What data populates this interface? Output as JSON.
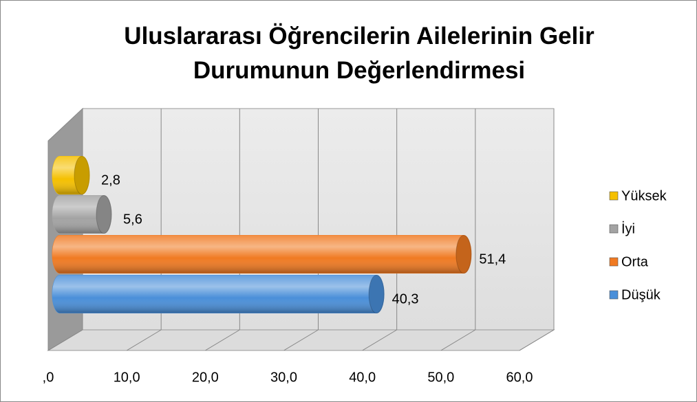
{
  "chart_data": {
    "type": "bar3d",
    "title": "Uluslararası Öğrencilerin Ailelerinin Gelir Durumunun Değerlendirmesi",
    "series": [
      {
        "name": "Düşük",
        "color": "#4a8fd9",
        "values": [
          40.3
        ],
        "value_labels": [
          "40,3"
        ]
      },
      {
        "name": "Orta",
        "color": "#f07a22",
        "values": [
          51.4
        ],
        "value_labels": [
          "51,4"
        ]
      },
      {
        "name": "İyi",
        "color": "#a3a3a3",
        "values": [
          5.6
        ],
        "value_labels": [
          "5,6"
        ]
      },
      {
        "name": "Yüksek",
        "color": "#f5c000",
        "values": [
          2.8
        ],
        "value_labels": [
          "2,8"
        ]
      }
    ],
    "xlim": [
      0,
      60
    ],
    "xticks": [
      {
        "value": 0,
        "label": ",0"
      },
      {
        "value": 10,
        "label": "10,0"
      },
      {
        "value": 20,
        "label": "20,0"
      },
      {
        "value": 30,
        "label": "30,0"
      },
      {
        "value": 40,
        "label": "40,0"
      },
      {
        "value": 50,
        "label": "50,0"
      },
      {
        "value": 60,
        "label": "60,0"
      }
    ],
    "grid": true,
    "legend": "right"
  }
}
